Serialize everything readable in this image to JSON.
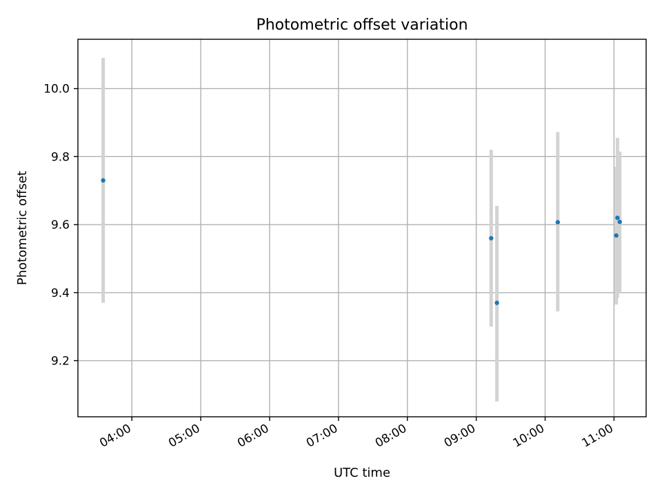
{
  "chart_data": {
    "type": "scatter",
    "title": "Photometric offset variation",
    "xlabel": "UTC time",
    "ylabel": "Photometric offset",
    "xlim": [
      "03:13",
      "11:28"
    ],
    "ylim": [
      9.035,
      10.145
    ],
    "xticks": [
      "04:00",
      "05:00",
      "06:00",
      "07:00",
      "08:00",
      "09:00",
      "10:00",
      "11:00"
    ],
    "yticks": [
      9.2,
      9.4,
      9.6,
      9.8,
      10.0
    ],
    "ytick_labels": [
      "9.2",
      "9.4",
      "9.6",
      "9.8",
      "10.0"
    ],
    "grid": true,
    "colors": {
      "points": "#1f77b4",
      "errorbars": "#d3d3d3",
      "grid": "#b0b0b0"
    },
    "points": [
      {
        "x": "03:35",
        "y": 9.73,
        "ylow": 9.37,
        "yhigh": 10.09
      },
      {
        "x": "09:13",
        "y": 9.56,
        "ylow": 9.3,
        "yhigh": 9.82
      },
      {
        "x": "09:18",
        "y": 9.37,
        "ylow": 9.08,
        "yhigh": 9.655
      },
      {
        "x": "10:11",
        "y": 9.607,
        "ylow": 9.345,
        "yhigh": 9.872
      },
      {
        "x": "11:02",
        "y": 9.568,
        "ylow": 9.365,
        "yhigh": 9.77
      },
      {
        "x": "11:03",
        "y": 9.62,
        "ylow": 9.385,
        "yhigh": 9.855
      },
      {
        "x": "11:05",
        "y": 9.608,
        "ylow": 9.4,
        "yhigh": 9.815
      }
    ]
  }
}
